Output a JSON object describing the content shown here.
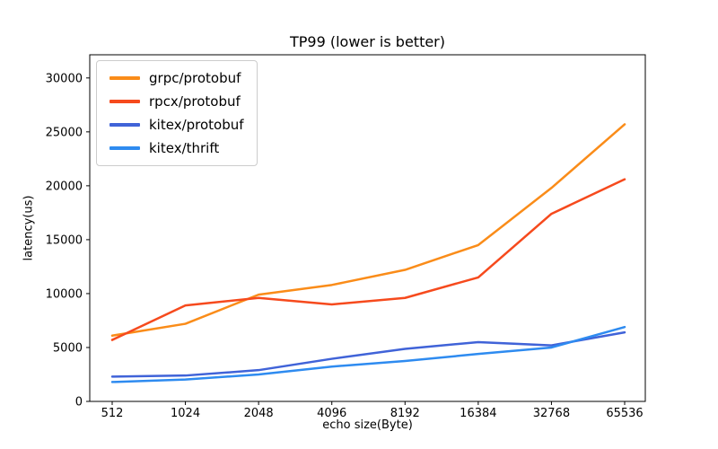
{
  "chart_data": {
    "type": "line",
    "title": "TP99 (lower is better)",
    "xlabel": "echo size(Byte)",
    "ylabel": "latency(us)",
    "categories": [
      "512",
      "1024",
      "2048",
      "4096",
      "8192",
      "16384",
      "32768",
      "65536"
    ],
    "series": [
      {
        "name": "grpc/protobuf",
        "color": "#FA8C19",
        "values": [
          6100,
          7200,
          9900,
          10800,
          12200,
          14500,
          19800,
          25700
        ]
      },
      {
        "name": "rpcx/protobuf",
        "color": "#F64A1D",
        "values": [
          5700,
          8900,
          9600,
          9000,
          9600,
          11500,
          17400,
          20600
        ]
      },
      {
        "name": "kitex/protobuf",
        "color": "#4063D8",
        "values": [
          2300,
          2400,
          2900,
          3950,
          4870,
          5500,
          5200,
          6400
        ]
      },
      {
        "name": "kitex/thrift",
        "color": "#2E8BF0",
        "values": [
          1800,
          2030,
          2500,
          3230,
          3750,
          4400,
          5000,
          6900
        ]
      }
    ],
    "yticks": [
      0,
      5000,
      10000,
      15000,
      20000,
      25000,
      30000
    ],
    "ylim": [
      0,
      32150
    ],
    "grid": false,
    "legend_position": "upper-left",
    "axis_color": "#000000",
    "tick_label_color": "#000000"
  }
}
